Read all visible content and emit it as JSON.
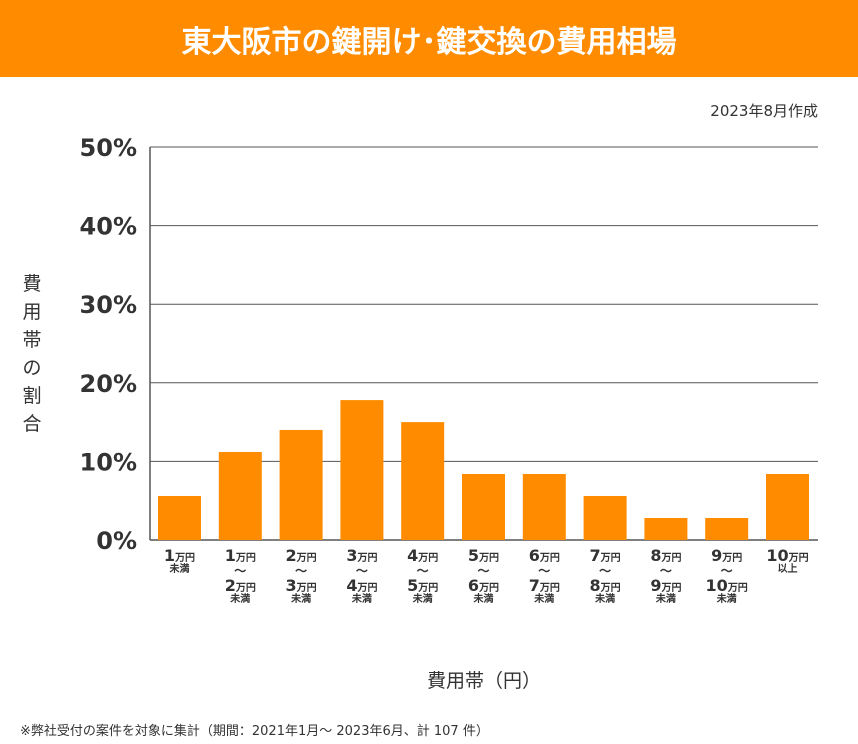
{
  "header": {
    "title": "東大阪市の鍵開け･鍵交換の費用相場"
  },
  "date": "2023年8月作成",
  "note": "※弊社受付の案件を対象に集計（期間：2021年1月～ 2023年6月、計 107 件）",
  "colors": {
    "accent": "#FF8C00",
    "grid": "#555555"
  },
  "chart_data": {
    "type": "bar",
    "title": "東大阪市の鍵開け･鍵交換の費用相場",
    "ylabel": "費用帯の割合",
    "xlabel": "費用帯（円）",
    "ylim": [
      0,
      50
    ],
    "yticks": [
      "0%",
      "10%",
      "20%",
      "30%",
      "40%",
      "50%"
    ],
    "grid": true,
    "categories": [
      {
        "from": {
          "num": "1",
          "unit": "万円"
        },
        "suffix": "未満"
      },
      {
        "from": {
          "num": "1",
          "unit": "万円"
        },
        "sep": "〜",
        "to": {
          "num": "2",
          "unit": "万円"
        },
        "suffix": "未満"
      },
      {
        "from": {
          "num": "2",
          "unit": "万円"
        },
        "sep": "〜",
        "to": {
          "num": "3",
          "unit": "万円"
        },
        "suffix": "未満"
      },
      {
        "from": {
          "num": "3",
          "unit": "万円"
        },
        "sep": "〜",
        "to": {
          "num": "4",
          "unit": "万円"
        },
        "suffix": "未満"
      },
      {
        "from": {
          "num": "4",
          "unit": "万円"
        },
        "sep": "〜",
        "to": {
          "num": "5",
          "unit": "万円"
        },
        "suffix": "未満"
      },
      {
        "from": {
          "num": "5",
          "unit": "万円"
        },
        "sep": "〜",
        "to": {
          "num": "6",
          "unit": "万円"
        },
        "suffix": "未満"
      },
      {
        "from": {
          "num": "6",
          "unit": "万円"
        },
        "sep": "〜",
        "to": {
          "num": "7",
          "unit": "万円"
        },
        "suffix": "未満"
      },
      {
        "from": {
          "num": "7",
          "unit": "万円"
        },
        "sep": "〜",
        "to": {
          "num": "8",
          "unit": "万円"
        },
        "suffix": "未満"
      },
      {
        "from": {
          "num": "8",
          "unit": "万円"
        },
        "sep": "〜",
        "to": {
          "num": "9",
          "unit": "万円"
        },
        "suffix": "未満"
      },
      {
        "from": {
          "num": "9",
          "unit": "万円"
        },
        "sep": "〜",
        "to": {
          "num": "10",
          "unit": "万円"
        },
        "suffix": "未満"
      },
      {
        "from": {
          "num": "10",
          "unit": "万円"
        },
        "suffix": "以上"
      }
    ],
    "values": [
      5.6,
      11.2,
      14.0,
      17.8,
      15.0,
      8.4,
      8.4,
      5.6,
      2.8,
      2.8,
      8.4
    ]
  }
}
